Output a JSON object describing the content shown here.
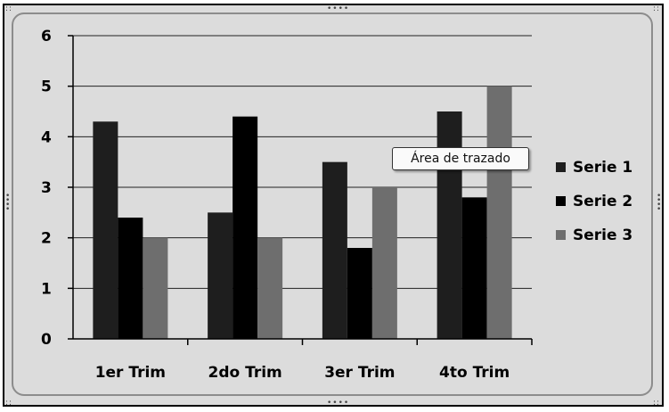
{
  "chart_data": {
    "type": "bar",
    "categories": [
      "1er Trim",
      "2do Trim",
      "3er Trim",
      "4to Trim"
    ],
    "series": [
      {
        "name": "Serie 1",
        "values": [
          4.3,
          2.5,
          3.5,
          4.5
        ],
        "color": "#1e1e1e"
      },
      {
        "name": "Serie 2",
        "values": [
          2.4,
          4.4,
          1.8,
          2.8
        ],
        "color": "#000000"
      },
      {
        "name": "Serie 3",
        "values": [
          2.0,
          2.0,
          3.0,
          5.0
        ],
        "color": "#6e6e6e"
      }
    ],
    "ylim": [
      0,
      6
    ],
    "yticks": [
      "0",
      "1",
      "2",
      "3",
      "4",
      "5",
      "6"
    ],
    "grid": true,
    "legend_position": "right"
  },
  "tooltip": {
    "text": "Área de trazado"
  }
}
